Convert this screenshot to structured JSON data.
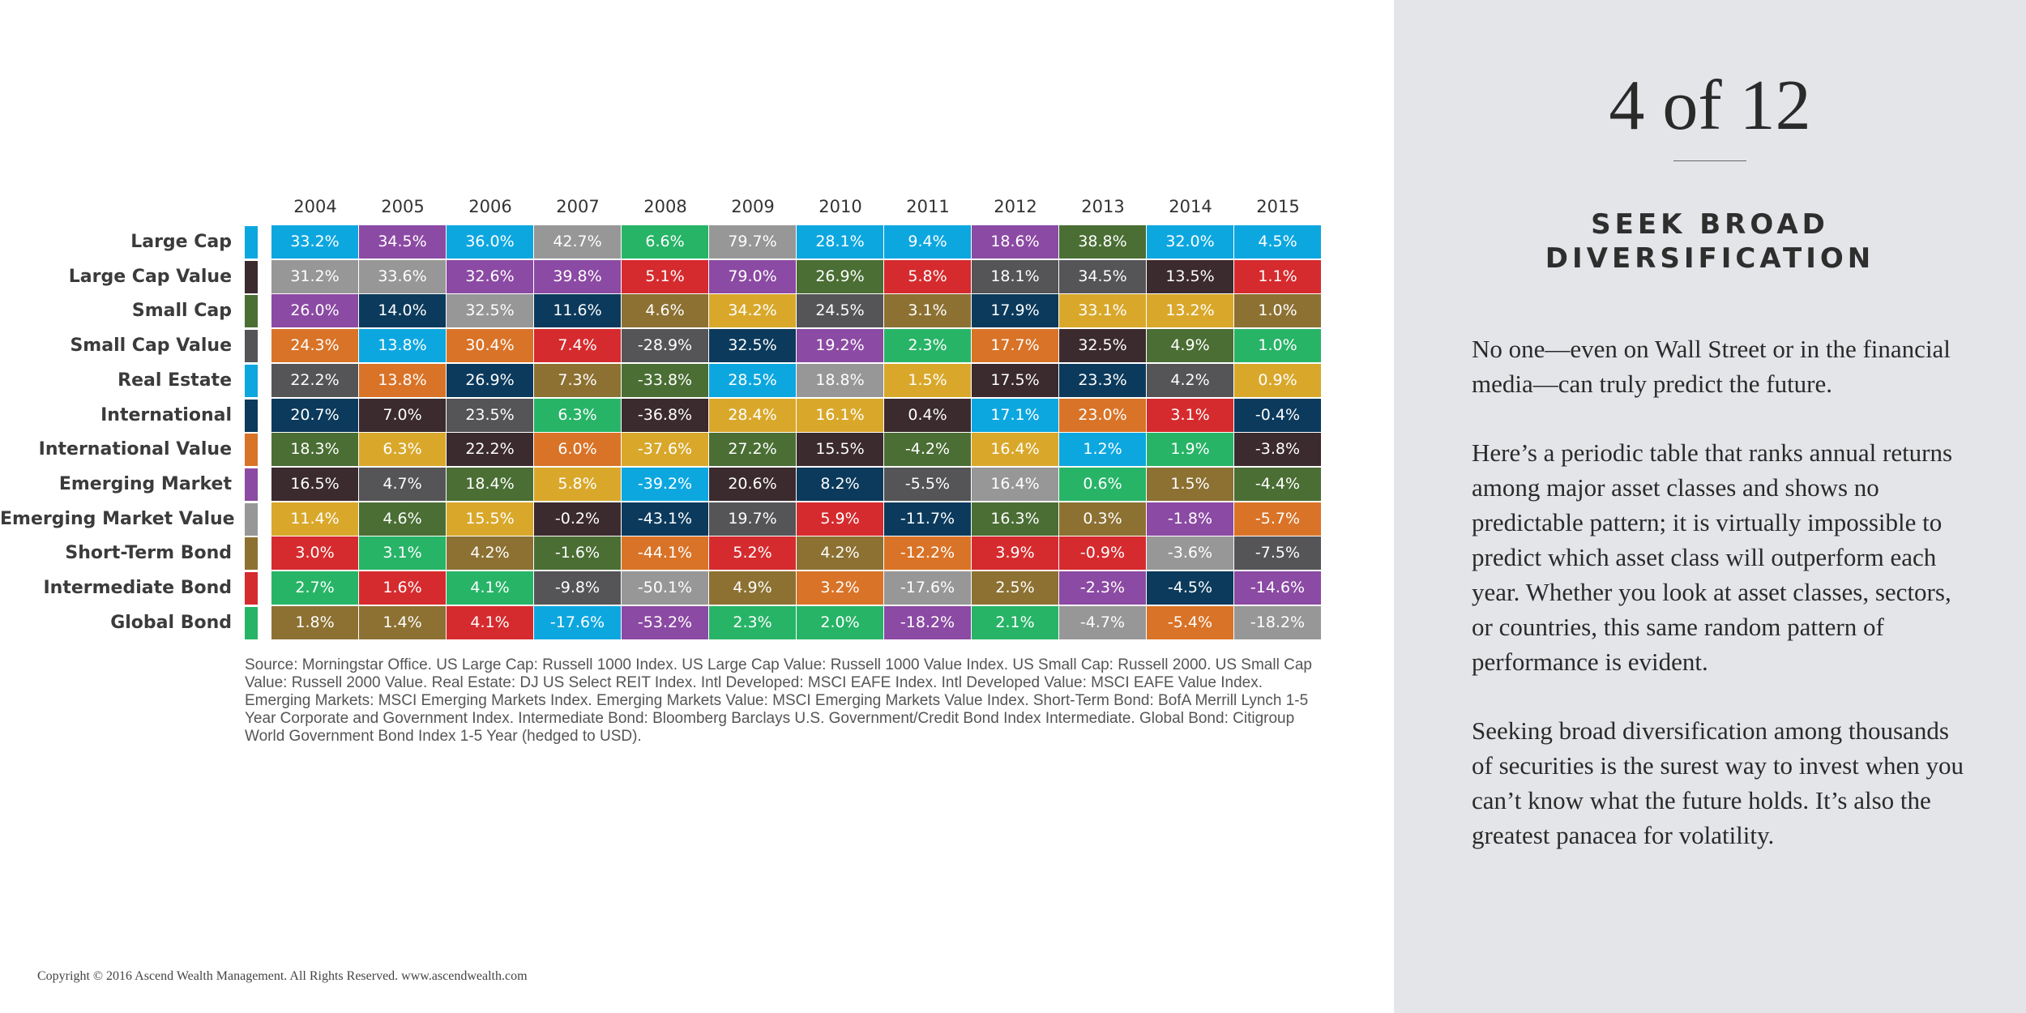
{
  "chart_data": {
    "type": "table",
    "years": [
      "2004",
      "2005",
      "2006",
      "2007",
      "2008",
      "2009",
      "2010",
      "2011",
      "2012",
      "2013",
      "2014",
      "2015"
    ],
    "asset_classes": [
      {
        "name": "Large Cap",
        "color": "#0da7e0"
      },
      {
        "name": "Large Cap Value",
        "color": "#3b2a2e"
      },
      {
        "name": "Small Cap",
        "color": "#4a6e34"
      },
      {
        "name": "Small Cap Value",
        "color": "#555558"
      },
      {
        "name": "Real Estate",
        "color": "#0da7e0"
      },
      {
        "name": "International ",
        "color": "#0b3a5c"
      },
      {
        "name": "International Value",
        "color": "#d97327"
      },
      {
        "name": "Emerging Market",
        "color": "#8b4aa3"
      },
      {
        "name": "Emerging Market Value",
        "color": "#979797"
      },
      {
        "name": "Short-Term Bond",
        "color": "#8c7132"
      },
      {
        "name": "Intermediate Bond",
        "color": "#d62b2e"
      },
      {
        "name": "Global Bond",
        "color": "#27b467"
      }
    ],
    "rows": [
      [
        {
          "v": "33.2%",
          "c": "#0da7e0"
        },
        {
          "v": "34.5%",
          "c": "#8b4aa3"
        },
        {
          "v": "36.0%",
          "c": "#0da7e0"
        },
        {
          "v": "42.7%",
          "c": "#979797"
        },
        {
          "v": "6.6%",
          "c": "#27b467"
        },
        {
          "v": "79.7%",
          "c": "#979797"
        },
        {
          "v": "28.1%",
          "c": "#0da7e0"
        },
        {
          "v": "9.4%",
          "c": "#0da7e0"
        },
        {
          "v": "18.6%",
          "c": "#8b4aa3"
        },
        {
          "v": "38.8%",
          "c": "#4a6e34"
        },
        {
          "v": "32.0%",
          "c": "#0da7e0"
        },
        {
          "v": "4.5%",
          "c": "#0da7e0"
        }
      ],
      [
        {
          "v": "31.2%",
          "c": "#979797"
        },
        {
          "v": "33.6%",
          "c": "#979797"
        },
        {
          "v": "32.6%",
          "c": "#8b4aa3"
        },
        {
          "v": "39.8%",
          "c": "#8b4aa3"
        },
        {
          "v": "5.1%",
          "c": "#d62b2e"
        },
        {
          "v": "79.0%",
          "c": "#8b4aa3"
        },
        {
          "v": "26.9%",
          "c": "#4a6e34"
        },
        {
          "v": "5.8%",
          "c": "#d62b2e"
        },
        {
          "v": "18.1%",
          "c": "#555558"
        },
        {
          "v": "34.5%",
          "c": "#555558"
        },
        {
          "v": "13.5%",
          "c": "#3b2a2e"
        },
        {
          "v": "1.1%",
          "c": "#d62b2e"
        }
      ],
      [
        {
          "v": "26.0%",
          "c": "#8b4aa3"
        },
        {
          "v": "14.0%",
          "c": "#0b3a5c"
        },
        {
          "v": "32.5%",
          "c": "#979797"
        },
        {
          "v": "11.6%",
          "c": "#0b3a5c"
        },
        {
          "v": "4.6%",
          "c": "#8c7132"
        },
        {
          "v": "34.2%",
          "c": "#d9a82b"
        },
        {
          "v": "24.5%",
          "c": "#555558"
        },
        {
          "v": "3.1%",
          "c": "#8c7132"
        },
        {
          "v": "17.9%",
          "c": "#0b3a5c"
        },
        {
          "v": "33.1%",
          "c": "#d9a82b"
        },
        {
          "v": "13.2%",
          "c": "#d9a82b"
        },
        {
          "v": "1.0%",
          "c": "#8c7132"
        }
      ],
      [
        {
          "v": "24.3%",
          "c": "#d97327"
        },
        {
          "v": "13.8%",
          "c": "#0da7e0"
        },
        {
          "v": "30.4%",
          "c": "#d97327"
        },
        {
          "v": "7.4%",
          "c": "#d62b2e"
        },
        {
          "v": "-28.9%",
          "c": "#555558"
        },
        {
          "v": "32.5%",
          "c": "#0b3a5c"
        },
        {
          "v": "19.2%",
          "c": "#8b4aa3"
        },
        {
          "v": "2.3%",
          "c": "#27b467"
        },
        {
          "v": "17.7%",
          "c": "#d97327"
        },
        {
          "v": "32.5%",
          "c": "#3b2a2e"
        },
        {
          "v": "4.9%",
          "c": "#4a6e34"
        },
        {
          "v": "1.0%",
          "c": "#27b467"
        }
      ],
      [
        {
          "v": "22.2%",
          "c": "#555558"
        },
        {
          "v": "13.8%",
          "c": "#d97327"
        },
        {
          "v": "26.9%",
          "c": "#0b3a5c"
        },
        {
          "v": "7.3%",
          "c": "#8c7132"
        },
        {
          "v": "-33.8%",
          "c": "#4a6e34"
        },
        {
          "v": "28.5%",
          "c": "#0da7e0"
        },
        {
          "v": "18.8%",
          "c": "#979797"
        },
        {
          "v": "1.5%",
          "c": "#d9a82b"
        },
        {
          "v": "17.5%",
          "c": "#3b2a2e"
        },
        {
          "v": "23.3%",
          "c": "#0b3a5c"
        },
        {
          "v": "4.2%",
          "c": "#555558"
        },
        {
          "v": "0.9%",
          "c": "#d9a82b"
        }
      ],
      [
        {
          "v": "20.7%",
          "c": "#0b3a5c"
        },
        {
          "v": "7.0%",
          "c": "#3b2a2e"
        },
        {
          "v": "23.5%",
          "c": "#555558"
        },
        {
          "v": "6.3%",
          "c": "#27b467"
        },
        {
          "v": "-36.8%",
          "c": "#3b2a2e"
        },
        {
          "v": "28.4%",
          "c": "#d9a82b"
        },
        {
          "v": "16.1%",
          "c": "#d9a82b"
        },
        {
          "v": "0.4%",
          "c": "#3b2a2e"
        },
        {
          "v": "17.1%",
          "c": "#0da7e0"
        },
        {
          "v": "23.0%",
          "c": "#d97327"
        },
        {
          "v": "3.1%",
          "c": "#d62b2e"
        },
        {
          "v": "-0.4%",
          "c": "#0b3a5c"
        }
      ],
      [
        {
          "v": "18.3%",
          "c": "#4a6e34"
        },
        {
          "v": "6.3%",
          "c": "#d9a82b"
        },
        {
          "v": "22.2%",
          "c": "#3b2a2e"
        },
        {
          "v": "6.0%",
          "c": "#d97327"
        },
        {
          "v": "-37.6%",
          "c": "#d9a82b"
        },
        {
          "v": "27.2%",
          "c": "#4a6e34"
        },
        {
          "v": "15.5%",
          "c": "#3b2a2e"
        },
        {
          "v": "-4.2%",
          "c": "#4a6e34"
        },
        {
          "v": "16.4%",
          "c": "#d9a82b"
        },
        {
          "v": "1.2%",
          "c": "#0da7e0"
        },
        {
          "v": "1.9%",
          "c": "#27b467"
        },
        {
          "v": "-3.8%",
          "c": "#3b2a2e"
        }
      ],
      [
        {
          "v": "16.5%",
          "c": "#3b2a2e"
        },
        {
          "v": "4.7%",
          "c": "#555558"
        },
        {
          "v": "18.4%",
          "c": "#4a6e34"
        },
        {
          "v": "5.8%",
          "c": "#d9a82b"
        },
        {
          "v": "-39.2%",
          "c": "#0da7e0"
        },
        {
          "v": "20.6%",
          "c": "#3b2a2e"
        },
        {
          "v": "8.2%",
          "c": "#0b3a5c"
        },
        {
          "v": "-5.5%",
          "c": "#555558"
        },
        {
          "v": "16.4%",
          "c": "#979797"
        },
        {
          "v": "0.6%",
          "c": "#27b467"
        },
        {
          "v": "1.5%",
          "c": "#8c7132"
        },
        {
          "v": "-4.4%",
          "c": "#4a6e34"
        }
      ],
      [
        {
          "v": "11.4%",
          "c": "#d9a82b"
        },
        {
          "v": "4.6%",
          "c": "#4a6e34"
        },
        {
          "v": "15.5%",
          "c": "#d9a82b"
        },
        {
          "v": "-0.2%",
          "c": "#3b2a2e"
        },
        {
          "v": "-43.1%",
          "c": "#0b3a5c"
        },
        {
          "v": "19.7%",
          "c": "#555558"
        },
        {
          "v": "5.9%",
          "c": "#d62b2e"
        },
        {
          "v": "-11.7%",
          "c": "#0b3a5c"
        },
        {
          "v": "16.3%",
          "c": "#4a6e34"
        },
        {
          "v": "0.3%",
          "c": "#8c7132"
        },
        {
          "v": "-1.8%",
          "c": "#8b4aa3"
        },
        {
          "v": "-5.7%",
          "c": "#d97327"
        }
      ],
      [
        {
          "v": "3.0%",
          "c": "#d62b2e"
        },
        {
          "v": "3.1%",
          "c": "#27b467"
        },
        {
          "v": "4.2%",
          "c": "#8c7132"
        },
        {
          "v": "-1.6%",
          "c": "#4a6e34"
        },
        {
          "v": "-44.1%",
          "c": "#d97327"
        },
        {
          "v": "5.2%",
          "c": "#d62b2e"
        },
        {
          "v": "4.2%",
          "c": "#8c7132"
        },
        {
          "v": "-12.2%",
          "c": "#d97327"
        },
        {
          "v": "3.9%",
          "c": "#d62b2e"
        },
        {
          "v": "-0.9%",
          "c": "#d62b2e"
        },
        {
          "v": "-3.6%",
          "c": "#979797"
        },
        {
          "v": "-7.5%",
          "c": "#555558"
        }
      ],
      [
        {
          "v": "2.7%",
          "c": "#27b467"
        },
        {
          "v": "1.6%",
          "c": "#d62b2e"
        },
        {
          "v": "4.1%",
          "c": "#27b467"
        },
        {
          "v": "-9.8%",
          "c": "#555558"
        },
        {
          "v": "-50.1%",
          "c": "#979797"
        },
        {
          "v": "4.9%",
          "c": "#8c7132"
        },
        {
          "v": "3.2%",
          "c": "#d97327"
        },
        {
          "v": "-17.6%",
          "c": "#979797"
        },
        {
          "v": "2.5%",
          "c": "#8c7132"
        },
        {
          "v": "-2.3%",
          "c": "#8b4aa3"
        },
        {
          "v": "-4.5%",
          "c": "#0b3a5c"
        },
        {
          "v": "-14.6%",
          "c": "#8b4aa3"
        }
      ],
      [
        {
          "v": "1.8%",
          "c": "#8c7132"
        },
        {
          "v": "1.4%",
          "c": "#8c7132"
        },
        {
          "v": "4.1%",
          "c": "#d62b2e"
        },
        {
          "v": "-17.6%",
          "c": "#0da7e0"
        },
        {
          "v": "-53.2%",
          "c": "#8b4aa3"
        },
        {
          "v": "2.3%",
          "c": "#27b467"
        },
        {
          "v": "2.0%",
          "c": "#27b467"
        },
        {
          "v": "-18.2%",
          "c": "#8b4aa3"
        },
        {
          "v": "2.1%",
          "c": "#27b467"
        },
        {
          "v": "-4.7%",
          "c": "#979797"
        },
        {
          "v": "-5.4%",
          "c": "#d97327"
        },
        {
          "v": "-18.2%",
          "c": "#979797"
        }
      ]
    ],
    "source": "Source: Morningstar Office. US Large Cap: Russell 1000 Index. US Large Cap Value: Russell 1000 Value Index. US Small Cap: Russell 2000. US Small Cap Value: Russell 2000 Value. Real Estate: DJ US Select REIT Index. Intl Developed: MSCI EAFE Index. Intl Developed Value: MSCI EAFE Value Index. Emerging Markets: MSCI Emerging Markets Index. Emerging Markets Value: MSCI Emerging Markets Value Index. Short-Term Bond: BofA Merrill Lynch 1-5 Year Corporate and Government Index. Intermediate Bond: Bloomberg Barclays U.S. Government/Credit Bond Index Intermediate. Global Bond: Citigroup World Government Bond Index 1-5 Year (hedged to USD)."
  },
  "copyright": "Copyright © 2016 Ascend Wealth Management. All Rights Reserved.  www.ascendwealth.com",
  "sidebar": {
    "slide_number": "4 of 12",
    "heading_line1": "SEEK BROAD",
    "heading_line2": "DIVERSIFICATION",
    "paragraphs": [
      "No one—even on Wall Street or in the financial media—can truly predict the future.",
      "Here’s a periodic table that ranks annual returns among major asset classes and shows no predictable pattern; it is virtually impossible to predict which asset class will outperform each year. Whether you look at asset classes, sectors, or countries, this same random pattern of performance is evident.",
      "Seeking broad diversification among thousands of securities is the surest way to invest when you can’t know what the future holds.  It’s also the greatest panacea for volatility."
    ]
  }
}
